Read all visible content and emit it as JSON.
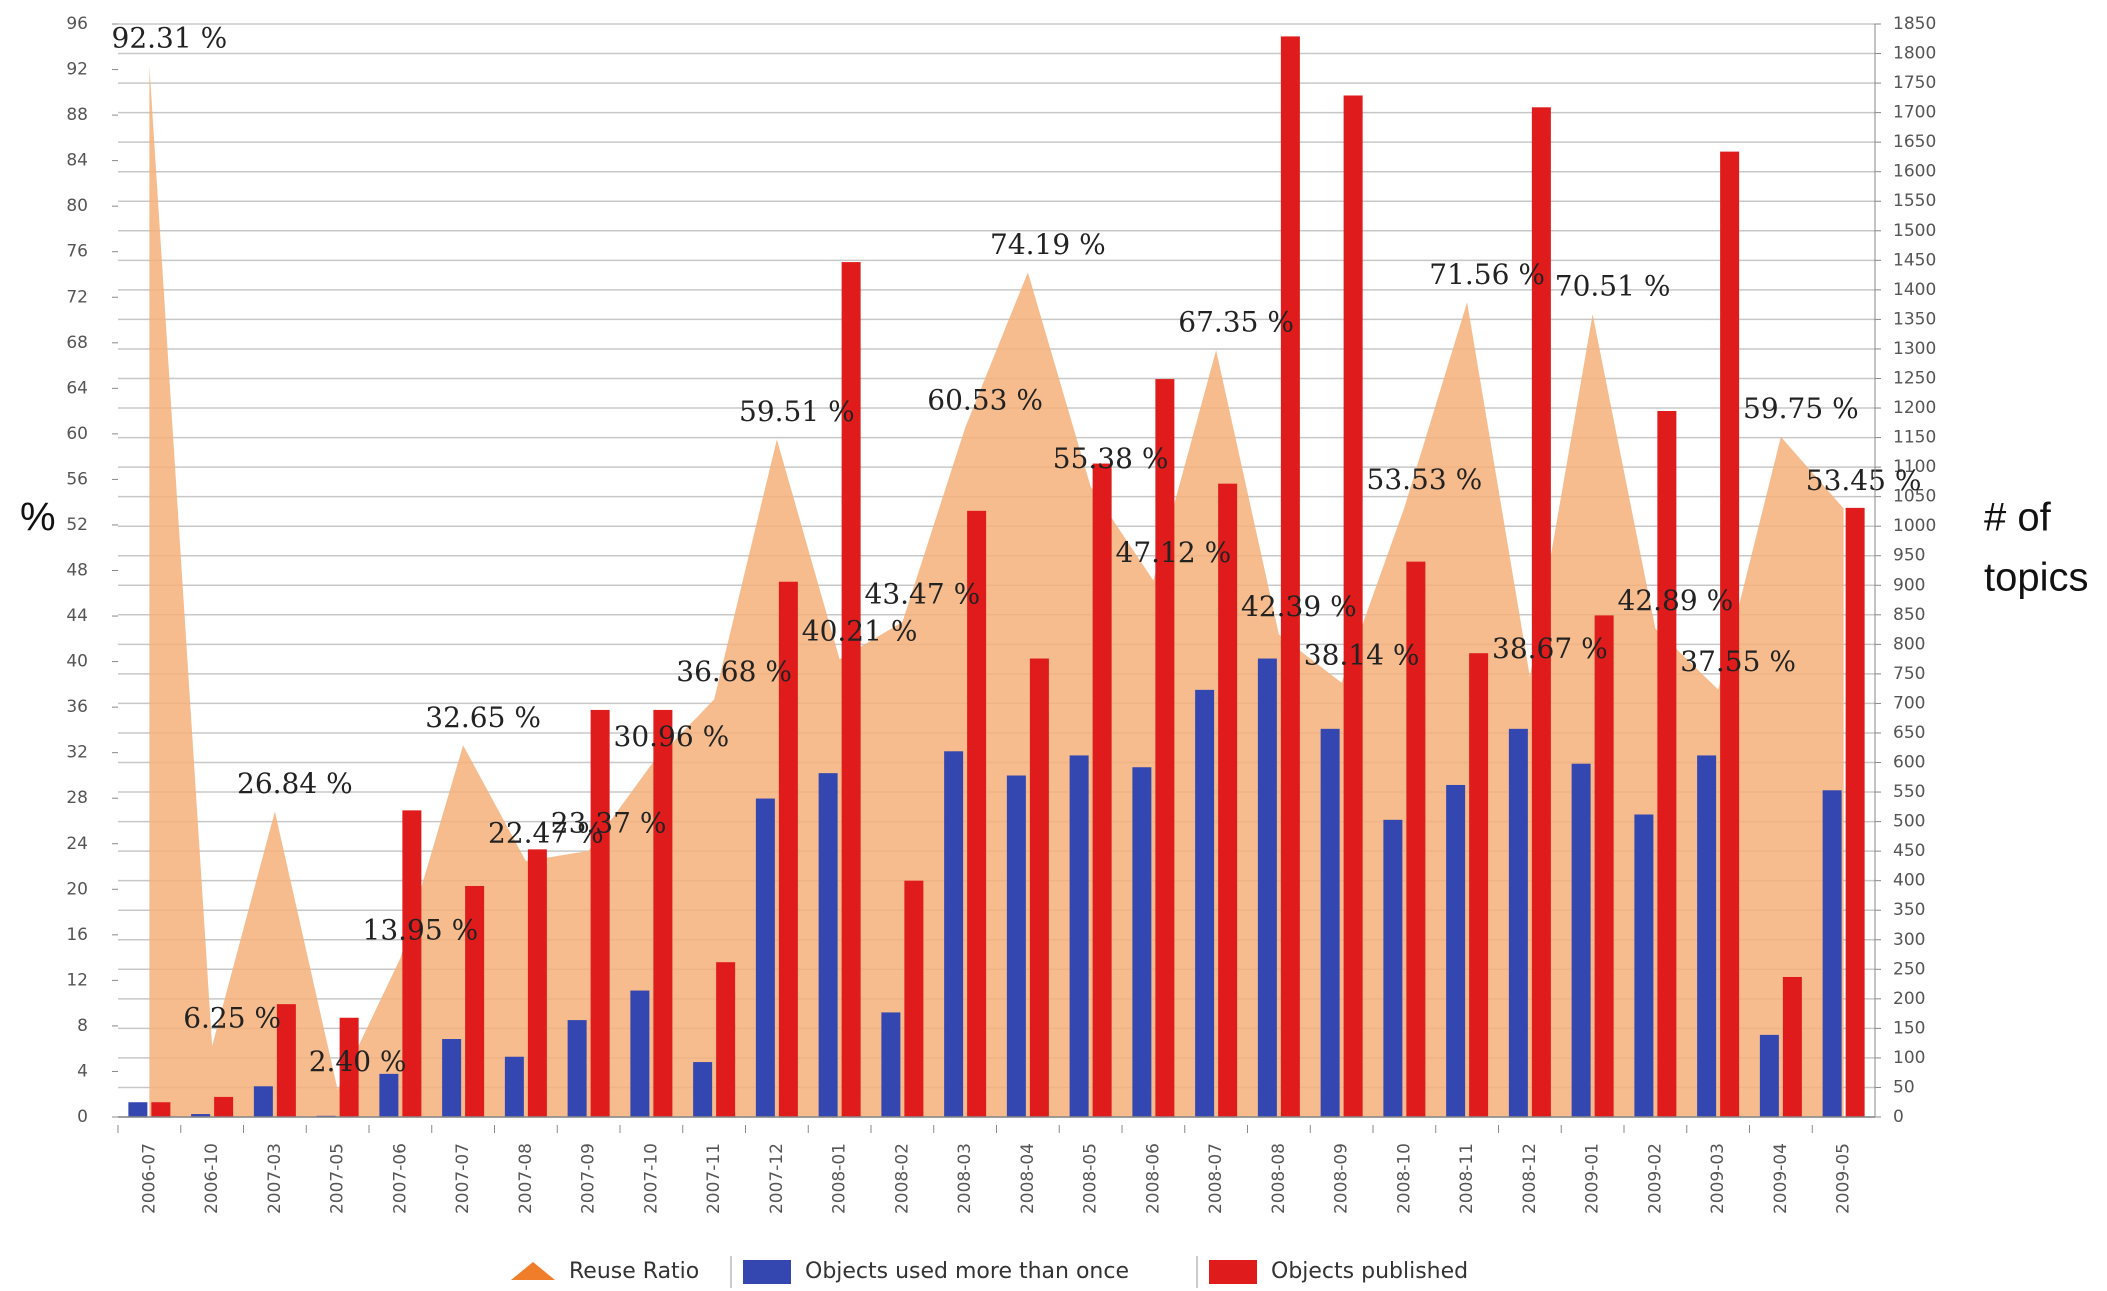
{
  "chart_data": {
    "type": "bar",
    "categories": [
      "2006-07",
      "2006-10",
      "2007-03",
      "2007-05",
      "2007-06",
      "2007-07",
      "2007-08",
      "2007-09",
      "2007-10",
      "2007-11",
      "2007-12",
      "2008-01",
      "2008-02",
      "2008-03",
      "2008-04",
      "2008-05",
      "2008-06",
      "2008-07",
      "2008-08",
      "2008-09",
      "2008-10",
      "2008-11",
      "2008-12",
      "2009-01",
      "2009-02",
      "2009-03",
      "2009-04",
      "2009-05"
    ],
    "ylabel": "%",
    "y2label": [
      "# of",
      "topics"
    ],
    "ylim": [
      0,
      96
    ],
    "yticks": [
      0,
      4,
      8,
      12,
      16,
      20,
      24,
      28,
      32,
      36,
      40,
      44,
      48,
      52,
      56,
      60,
      64,
      68,
      72,
      76,
      80,
      84,
      88,
      92,
      96
    ],
    "y2lim": [
      0,
      1850
    ],
    "y2ticks": [
      0,
      50,
      100,
      150,
      200,
      250,
      300,
      350,
      400,
      450,
      500,
      550,
      600,
      650,
      700,
      750,
      800,
      850,
      900,
      950,
      1000,
      1050,
      1100,
      1150,
      1200,
      1250,
      1300,
      1350,
      1400,
      1450,
      1500,
      1550,
      1600,
      1650,
      1700,
      1750,
      1800,
      1850
    ],
    "grid": true,
    "series": [
      {
        "name": "Reuse Ratio",
        "type": "area",
        "color": "#f5b07a",
        "axis": "y",
        "values": [
          92.31,
          6.25,
          26.84,
          2.4,
          13.95,
          32.65,
          22.47,
          23.37,
          30.96,
          36.68,
          59.51,
          40.21,
          43.47,
          60.53,
          74.19,
          55.38,
          47.12,
          67.35,
          42.39,
          38.14,
          53.53,
          71.56,
          38.67,
          70.51,
          42.89,
          37.55,
          59.75,
          53.45
        ],
        "value_labels": [
          "92.31 %",
          "6.25 %",
          "26.84 %",
          "2.40 %",
          "13.95 %",
          "32.65 %",
          "22.47 %",
          "23.37 %",
          "30.96 %",
          "36.68 %",
          "59.51 %",
          "40.21 %",
          "43.47 %",
          "60.53 %",
          "74.19 %",
          "55.38 %",
          "47.12 %",
          "67.35 %",
          "42.39 %",
          "38.14 %",
          "53.53 %",
          "71.56 %",
          "38.67 %",
          "70.51 %",
          "42.89 %",
          "37.55 %",
          "59.75 %",
          "53.45 %"
        ]
      },
      {
        "name": "Objects used more than once",
        "type": "bar",
        "color": "#3447b0",
        "axis": "y2",
        "values": [
          25,
          5,
          52,
          2,
          73,
          132,
          102,
          164,
          214,
          93,
          539,
          582,
          177,
          619,
          578,
          612,
          592,
          723,
          776,
          657,
          503,
          562,
          657,
          598,
          512,
          612,
          139,
          553
        ]
      },
      {
        "name": "Objects published",
        "type": "bar",
        "color": "#e01b1b",
        "axis": "y2",
        "values": [
          25,
          34,
          191,
          168,
          519,
          391,
          453,
          689,
          689,
          262,
          906,
          1447,
          400,
          1026,
          776,
          1106,
          1249,
          1072,
          1829,
          1729,
          940,
          785,
          1709,
          849,
          1195,
          1634,
          237,
          1031
        ]
      }
    ]
  }
}
